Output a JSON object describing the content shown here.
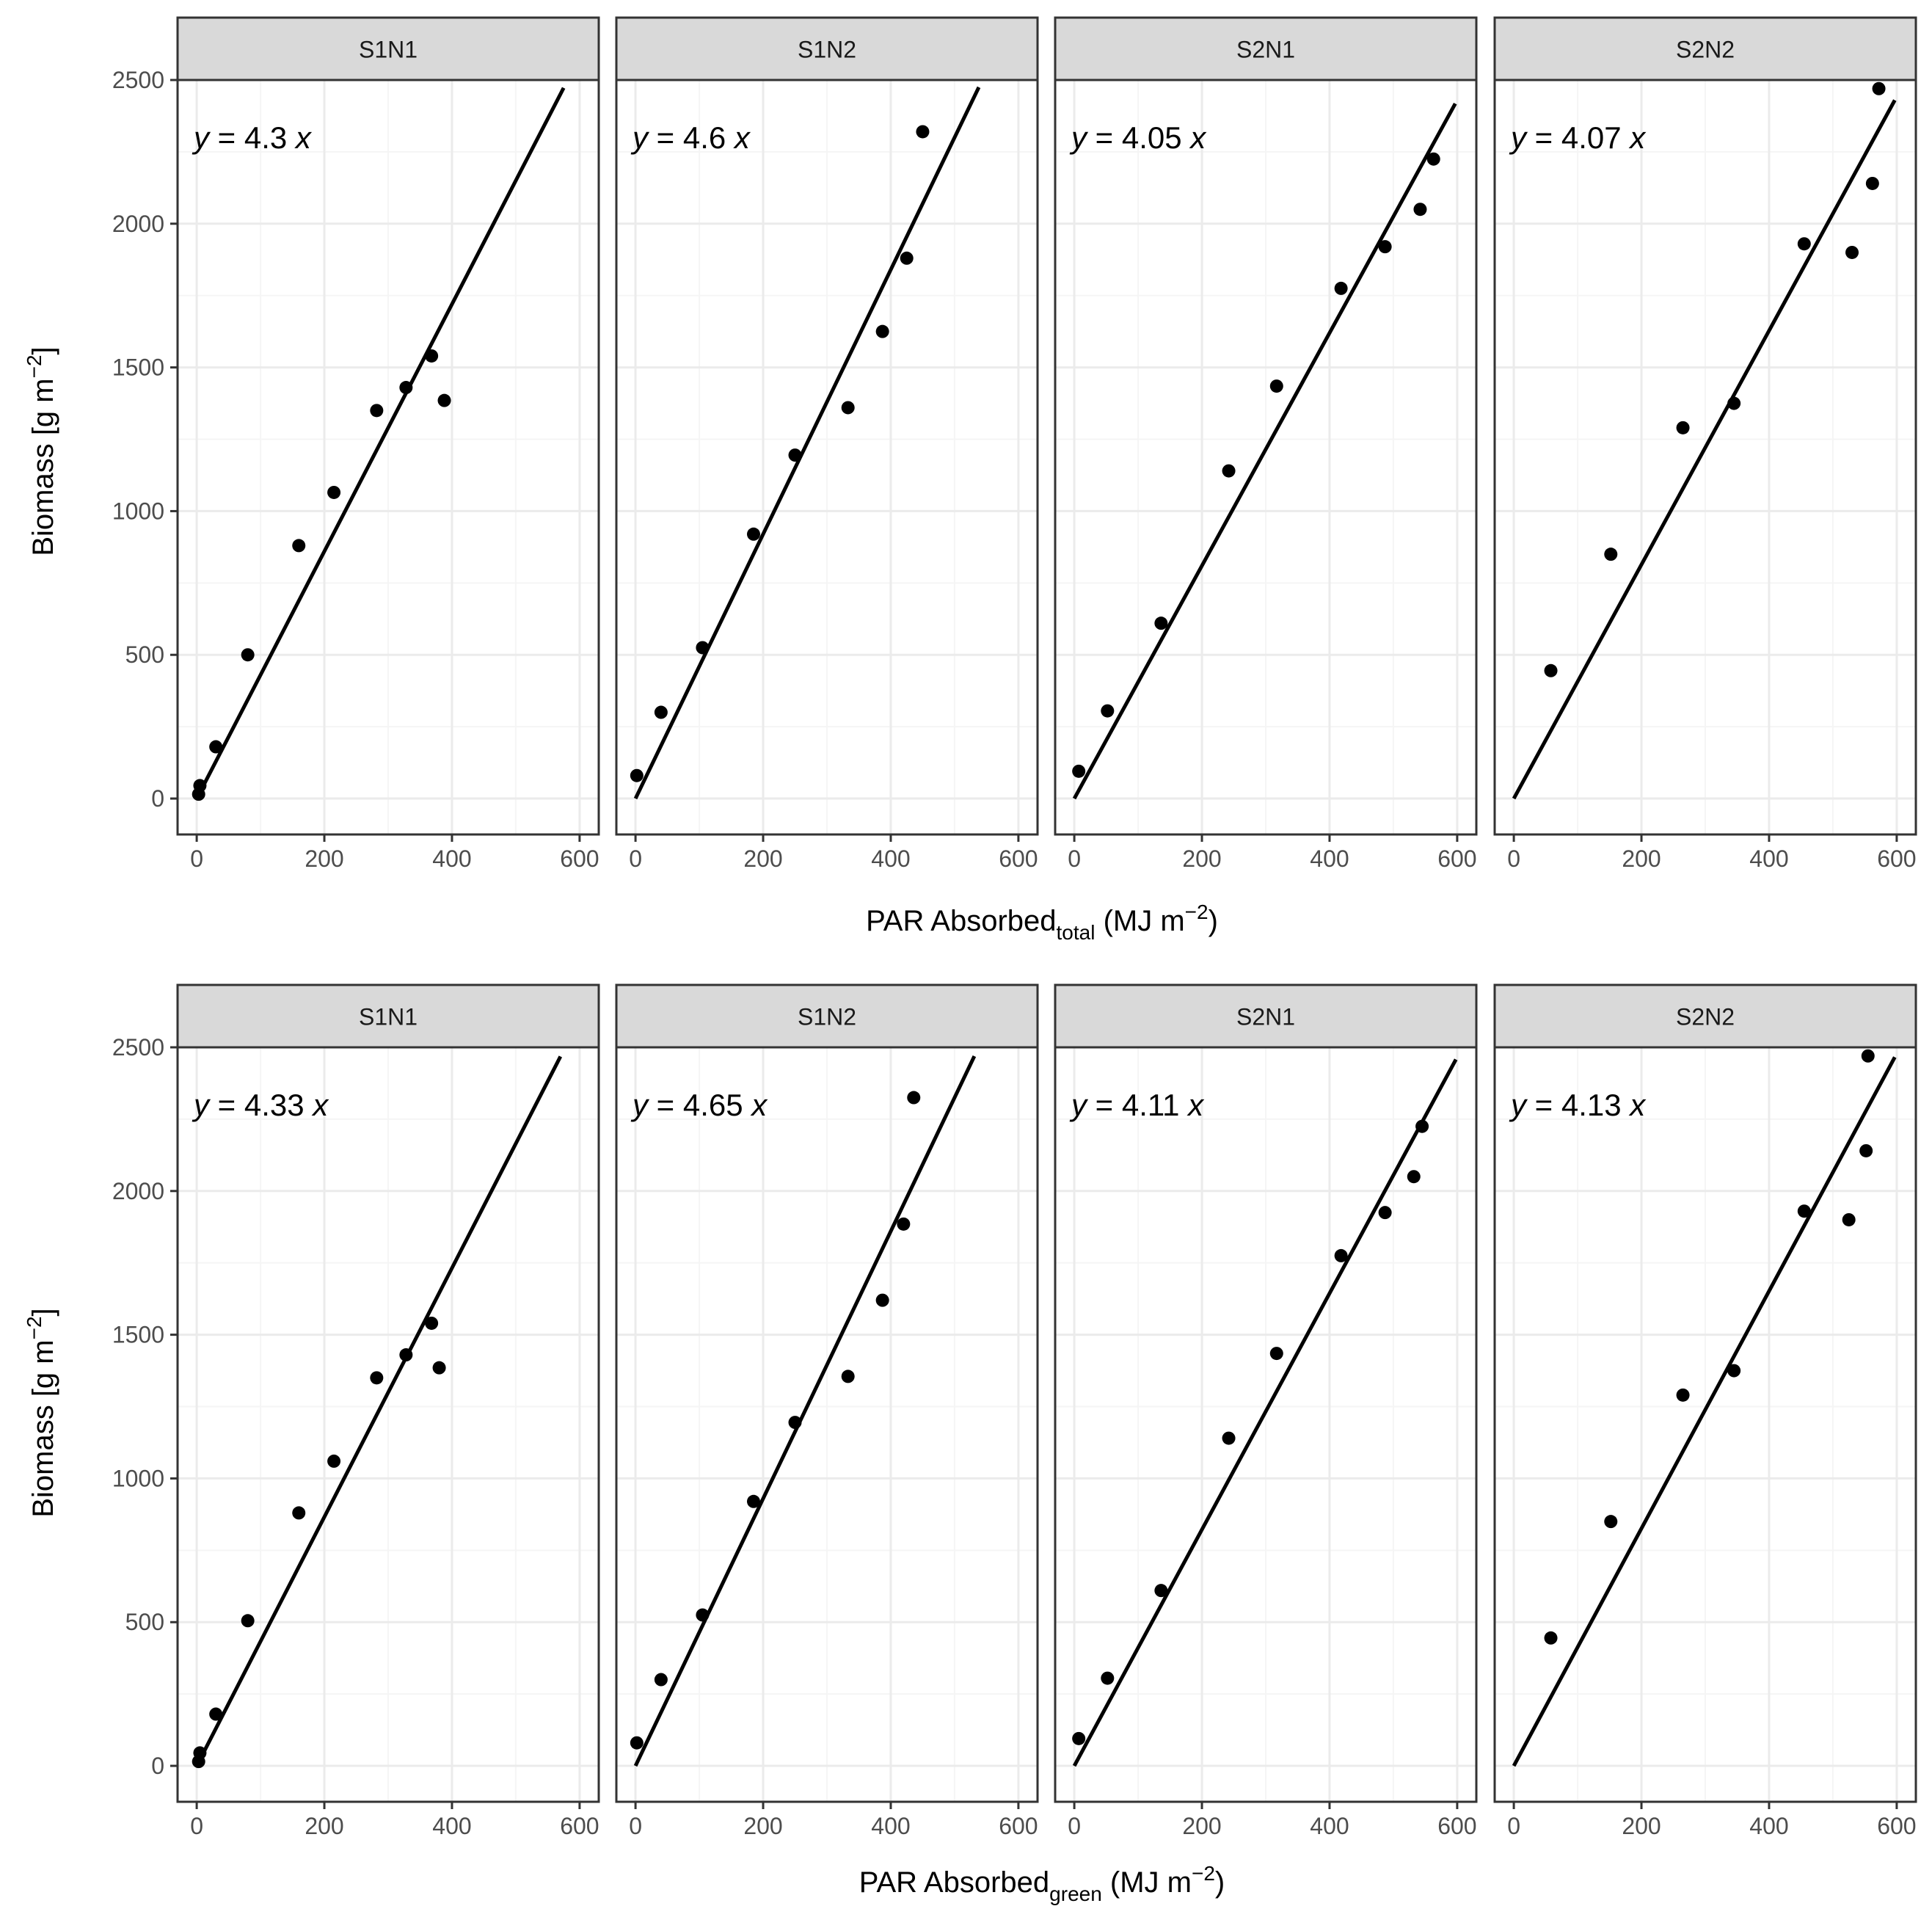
{
  "colors": {
    "strip_fill": "#d9d9d9",
    "panel_border": "#333333",
    "grid_major": "#ebebeb",
    "grid_minor": "#f5f5f5",
    "point": "#000000",
    "line": "#000000"
  },
  "y_title": {
    "main": "Biomass [g m",
    "sup": "−2",
    "close": "]"
  },
  "x_titles": [
    {
      "main": "PAR Absorbed",
      "sub": "total",
      "unit": " (MJ m",
      "sup": "−2",
      "close": ")"
    },
    {
      "main": "PAR Absorbed",
      "sub": "green",
      "unit": " (MJ m",
      "sup": "−2",
      "close": ")"
    }
  ],
  "chart_data": [
    {
      "type": "scatter",
      "title": "",
      "xlabel": "PAR Absorbed total (MJ m−2)",
      "ylabel": "Biomass [g m−2]",
      "xlim": [
        -30,
        630
      ],
      "ylim": [
        -125,
        2500
      ],
      "x_ticks": [
        0,
        200,
        400,
        600
      ],
      "y_ticks": [
        0,
        500,
        1000,
        1500,
        2000,
        2500
      ],
      "panels": [
        {
          "label": "S1N1",
          "equation": {
            "y": "y",
            "eq": " = 4.3 ",
            "x": "x"
          },
          "slope": 4.3,
          "line_x": [
            0,
            575
          ],
          "points": [
            [
              3,
              15
            ],
            [
              5,
              45
            ],
            [
              30,
              180
            ],
            [
              80,
              500
            ],
            [
              160,
              880
            ],
            [
              215,
              1065
            ],
            [
              282,
              1350
            ],
            [
              328,
              1430
            ],
            [
              368,
              1540
            ],
            [
              388,
              1385
            ]
          ]
        },
        {
          "label": "S1N2",
          "equation": {
            "y": "y",
            "eq": " = 4.6 ",
            "x": "x"
          },
          "slope": 4.6,
          "line_x": [
            0,
            538
          ],
          "points": [
            [
              2,
              80
            ],
            [
              40,
              300
            ],
            [
              105,
              525
            ],
            [
              185,
              920
            ],
            [
              250,
              1195
            ],
            [
              333,
              1360
            ],
            [
              387,
              1625
            ],
            [
              425,
              1880
            ],
            [
              450,
              2320
            ]
          ]
        },
        {
          "label": "S2N1",
          "equation": {
            "y": "y",
            "eq": " = 4.05 ",
            "x": "x"
          },
          "slope": 4.05,
          "line_x": [
            0,
            597
          ],
          "points": [
            [
              7,
              95
            ],
            [
              52,
              305
            ],
            [
              136,
              610
            ],
            [
              242,
              1140
            ],
            [
              317,
              1435
            ],
            [
              418,
              1775
            ],
            [
              487,
              1920
            ],
            [
              542,
              2050
            ],
            [
              563,
              2225
            ]
          ]
        },
        {
          "label": "S2N2",
          "equation": {
            "y": "y",
            "eq": " = 4.07 ",
            "x": "x"
          },
          "slope": 4.07,
          "line_x": [
            0,
            597
          ],
          "points": [
            [
              58,
              445
            ],
            [
              152,
              850
            ],
            [
              265,
              1290
            ],
            [
              345,
              1375
            ],
            [
              455,
              1930
            ],
            [
              530,
              1900
            ],
            [
              562,
              2140
            ],
            [
              572,
              2470
            ]
          ]
        }
      ]
    },
    {
      "type": "scatter",
      "title": "",
      "xlabel": "PAR Absorbed green (MJ m−2)",
      "ylabel": "Biomass [g m−2]",
      "xlim": [
        -30,
        630
      ],
      "ylim": [
        -125,
        2500
      ],
      "x_ticks": [
        0,
        200,
        400,
        600
      ],
      "y_ticks": [
        0,
        500,
        1000,
        1500,
        2000,
        2500
      ],
      "panels": [
        {
          "label": "S1N1",
          "equation": {
            "y": "y",
            "eq": " = 4.33 ",
            "x": "x"
          },
          "slope": 4.33,
          "line_x": [
            0,
            570
          ],
          "points": [
            [
              3,
              15
            ],
            [
              5,
              45
            ],
            [
              30,
              180
            ],
            [
              80,
              505
            ],
            [
              160,
              880
            ],
            [
              215,
              1060
            ],
            [
              282,
              1350
            ],
            [
              328,
              1430
            ],
            [
              368,
              1540
            ],
            [
              380,
              1385
            ]
          ]
        },
        {
          "label": "S1N2",
          "equation": {
            "y": "y",
            "eq": " = 4.65 ",
            "x": "x"
          },
          "slope": 4.65,
          "line_x": [
            0,
            531
          ],
          "points": [
            [
              2,
              80
            ],
            [
              40,
              300
            ],
            [
              105,
              525
            ],
            [
              185,
              920
            ],
            [
              250,
              1195
            ],
            [
              333,
              1355
            ],
            [
              387,
              1620
            ],
            [
              420,
              1885
            ],
            [
              436,
              2325
            ]
          ]
        },
        {
          "label": "S2N1",
          "equation": {
            "y": "y",
            "eq": " = 4.11 ",
            "x": "x"
          },
          "slope": 4.11,
          "line_x": [
            0,
            598
          ],
          "points": [
            [
              7,
              95
            ],
            [
              52,
              305
            ],
            [
              136,
              610
            ],
            [
              242,
              1140
            ],
            [
              317,
              1435
            ],
            [
              418,
              1775
            ],
            [
              487,
              1925
            ],
            [
              532,
              2050
            ],
            [
              545,
              2225
            ]
          ]
        },
        {
          "label": "S2N2",
          "equation": {
            "y": "y",
            "eq": " = 4.13 ",
            "x": "x"
          },
          "slope": 4.13,
          "line_x": [
            0,
            597
          ],
          "points": [
            [
              58,
              445
            ],
            [
              152,
              850
            ],
            [
              265,
              1290
            ],
            [
              345,
              1375
            ],
            [
              455,
              1930
            ],
            [
              525,
              1900
            ],
            [
              552,
              2140
            ],
            [
              555,
              2470
            ]
          ]
        }
      ]
    }
  ]
}
